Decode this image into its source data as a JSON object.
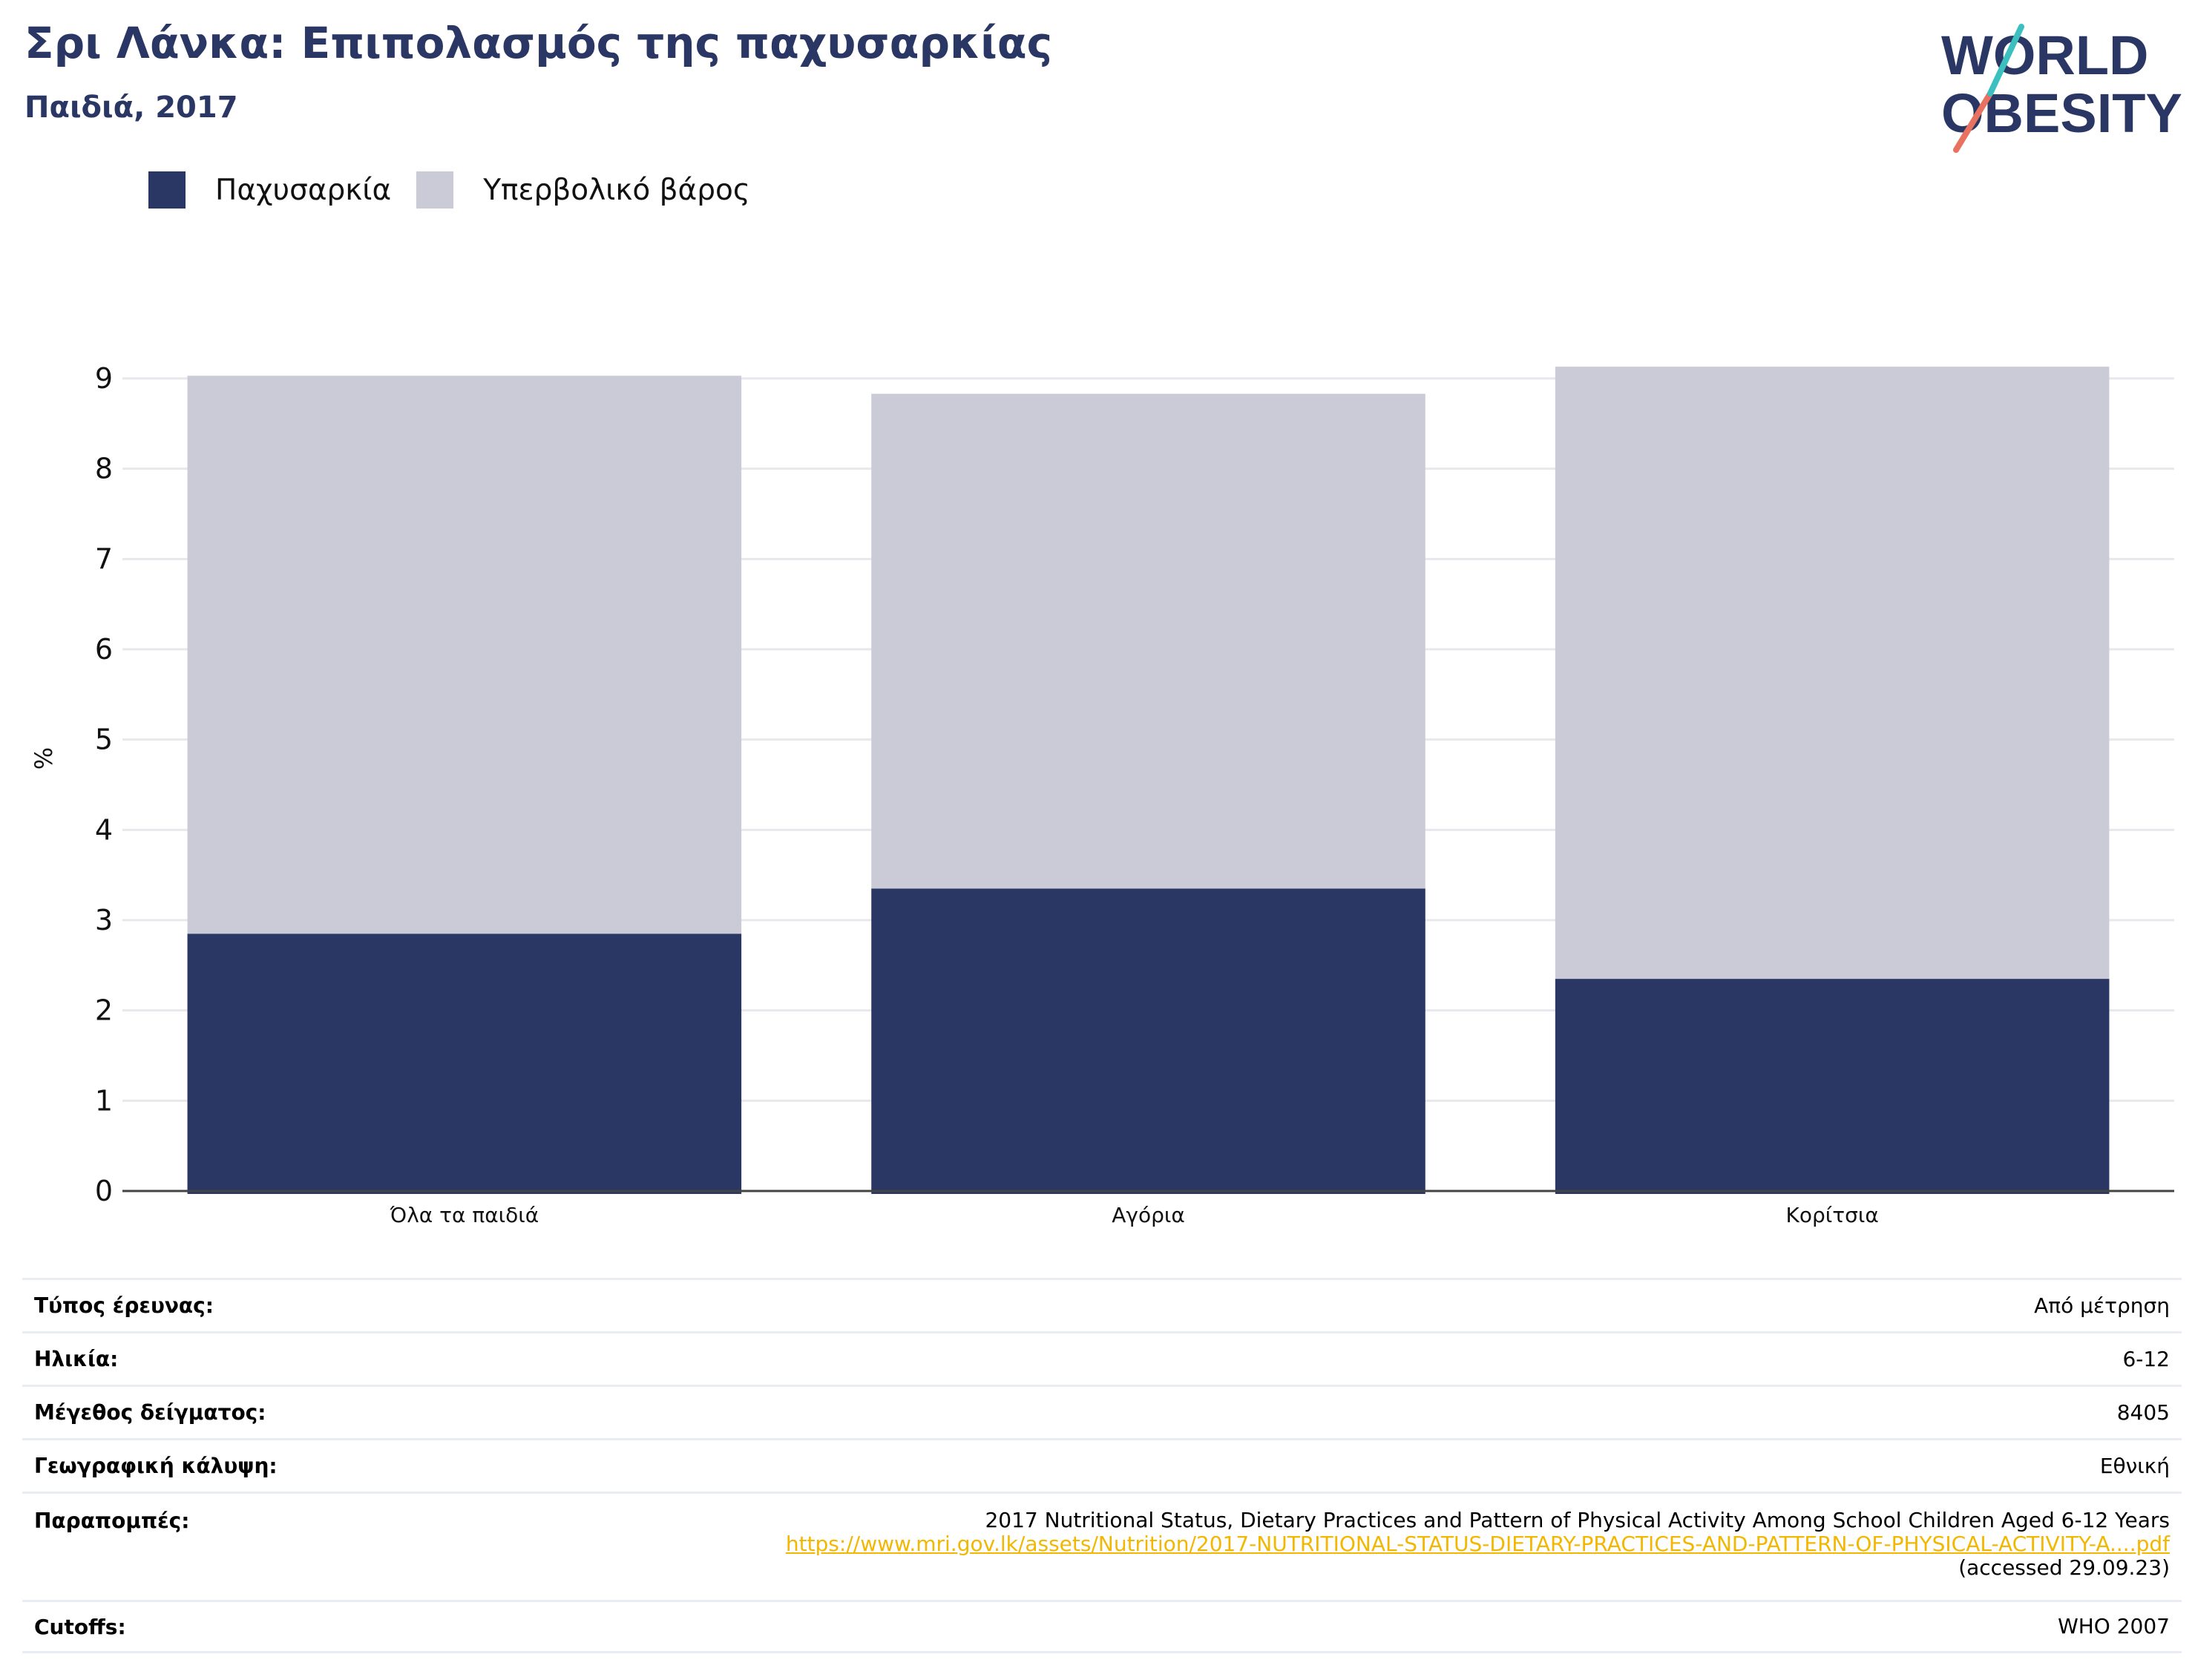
{
  "header": {
    "title": "Σρι Λάνκα: Επιπολασμός της παχυσαρκίας",
    "subtitle": "Παιδιά, 2017"
  },
  "logo": {
    "line1": "WORLD",
    "line2": "OBESITY"
  },
  "legend": {
    "items": [
      {
        "label": "Παχυσαρκία",
        "color": "#2a3764"
      },
      {
        "label": "Υπερβολικό βάρος",
        "color": "#cacbd7"
      }
    ]
  },
  "chart_data": {
    "type": "bar",
    "stacked": true,
    "categories": [
      "Όλα τα παιδιά",
      "Αγόρια",
      "Κορίτσια"
    ],
    "series": [
      {
        "name": "Παχυσαρκία",
        "color": "#2a3764",
        "values": [
          2.85,
          3.35,
          2.35
        ]
      },
      {
        "name": "Υπερβολικό βάρος",
        "color": "#cacbd7",
        "values": [
          6.18,
          5.48,
          6.78
        ]
      }
    ],
    "ylabel": "%",
    "ylim": [
      0,
      9
    ],
    "yticks": [
      0,
      1,
      2,
      3,
      4,
      5,
      6,
      7,
      8,
      9
    ],
    "grid": true,
    "legend_position": "top-left"
  },
  "details": {
    "survey_type": {
      "label": "Τύπος έρευνας:",
      "value": "Από μέτρηση"
    },
    "age": {
      "label": "Ηλικία:",
      "value": "6-12"
    },
    "sample_size": {
      "label": "Μέγεθος δείγματος:",
      "value": "8405"
    },
    "coverage": {
      "label": "Γεωγραφική κάλυψη:",
      "value": "Εθνική"
    },
    "references": {
      "label": "Παραπομπές:",
      "title": "2017 Nutritional Status, Dietary Practices and Pattern of Physical Activity Among School Children Aged 6-12 Years",
      "link": "https://www.mri.gov.lk/assets/Nutrition/2017-NUTRITIONAL-STATUS-DIETARY-PRACTICES-AND-PATTERN-OF-PHYSICAL-ACTIVITY-A....pdf",
      "accessed": "(accessed 29.09.23)"
    },
    "cutoffs": {
      "label": "Cutoffs:",
      "value": "WHO 2007"
    }
  }
}
